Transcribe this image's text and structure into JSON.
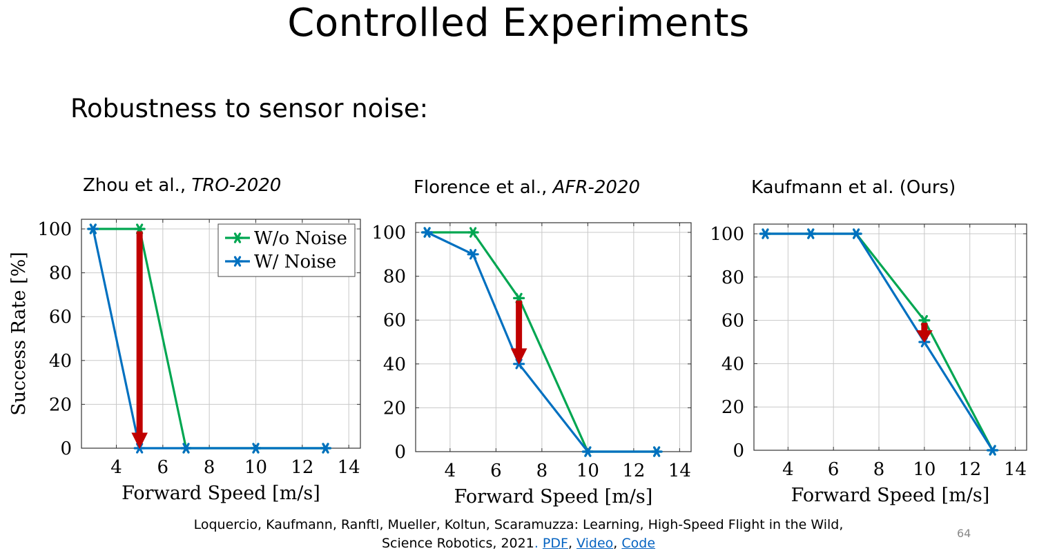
{
  "slide": {
    "title": "Controlled Experiments",
    "subtitle": "Robustness to sensor noise:",
    "page_number": "64"
  },
  "charts_titles": [
    {
      "text": "Zhou et al., ",
      "venue": "TRO-2020"
    },
    {
      "text": "Florence et al., ",
      "venue": "AFR-2020"
    },
    {
      "text": "Kaufmann et al. (Ours)",
      "venue": ""
    }
  ],
  "citation": {
    "line1": "Loquercio, Kaufmann, Ranftl, Mueller, Koltun, Scaramuzza: Learning, High-Speed Flight in the Wild,",
    "line2_prefix": "Science Robotics, 2021",
    "dot": ".",
    "link_pdf": "PDF",
    "sep1": ",",
    "link_video": "Video",
    "sep2": ",",
    "link_code": "Code"
  },
  "colors": {
    "wo_noise": "#00a651",
    "w_noise": "#0070c0",
    "arrow": "#c00000",
    "grid": "#c8c8c8"
  },
  "chart_data": [
    {
      "type": "line",
      "title": "Zhou et al., TRO-2020",
      "xlabel": "Forward Speed [m/s]",
      "ylabel": "Success Rate [%]",
      "xlim": [
        2.5,
        14.5
      ],
      "ylim": [
        0,
        100
      ],
      "xticks": [
        4,
        6,
        8,
        10,
        12,
        14
      ],
      "yticks": [
        0,
        20,
        40,
        60,
        80,
        100
      ],
      "grid": true,
      "legend": "top-right",
      "series": [
        {
          "name": "W/o Noise",
          "x": [
            3,
            5,
            7,
            10,
            13
          ],
          "y": [
            100,
            100,
            0,
            0,
            0
          ]
        },
        {
          "name": "W/ Noise",
          "x": [
            3,
            5,
            7,
            10,
            13
          ],
          "y": [
            100,
            0,
            0,
            0,
            0
          ]
        }
      ],
      "annotations": [
        {
          "type": "arrow",
          "x": 5,
          "from": 100,
          "to": 0
        }
      ]
    },
    {
      "type": "line",
      "title": "Florence et al., AFR-2020",
      "xlabel": "Forward Speed [m/s]",
      "ylabel": "",
      "xlim": [
        2.5,
        14.5
      ],
      "ylim": [
        0,
        100
      ],
      "xticks": [
        4,
        6,
        8,
        10,
        12,
        14
      ],
      "yticks": [
        0,
        20,
        40,
        60,
        80,
        100
      ],
      "grid": true,
      "series": [
        {
          "name": "W/o Noise",
          "x": [
            3,
            5,
            7,
            10,
            13
          ],
          "y": [
            100,
            100,
            70,
            0,
            0
          ]
        },
        {
          "name": "W/ Noise",
          "x": [
            3,
            5,
            7,
            10,
            13
          ],
          "y": [
            100,
            90,
            40,
            0,
            0
          ]
        }
      ],
      "annotations": [
        {
          "type": "arrow",
          "x": 7,
          "from": 70,
          "to": 40
        }
      ]
    },
    {
      "type": "line",
      "title": "Kaufmann et al. (Ours)",
      "xlabel": "Forward Speed [m/s]",
      "ylabel": "",
      "xlim": [
        2.5,
        14.5
      ],
      "ylim": [
        0,
        100
      ],
      "xticks": [
        4,
        6,
        8,
        10,
        12,
        14
      ],
      "yticks": [
        0,
        20,
        40,
        60,
        80,
        100
      ],
      "grid": true,
      "series": [
        {
          "name": "W/o Noise",
          "x": [
            3,
            5,
            7,
            10,
            13
          ],
          "y": [
            100,
            100,
            100,
            60,
            0
          ]
        },
        {
          "name": "W/ Noise",
          "x": [
            3,
            5,
            7,
            10,
            13
          ],
          "y": [
            100,
            100,
            100,
            50,
            0
          ]
        }
      ],
      "annotations": [
        {
          "type": "arrow",
          "x": 10,
          "from": 60,
          "to": 50
        }
      ]
    }
  ]
}
